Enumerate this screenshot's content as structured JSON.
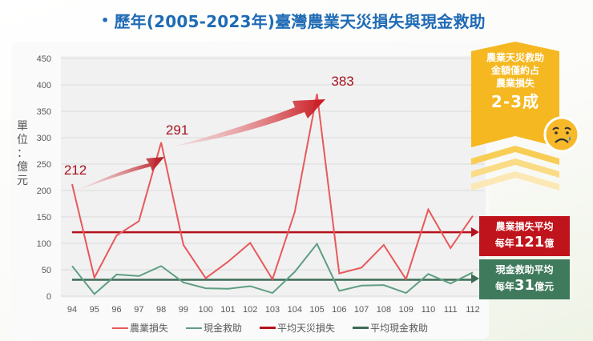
{
  "title": "歷年(2005-2023年)臺灣農業天災損失與現金救助",
  "title_bullet": "•",
  "y_axis_label": [
    "單",
    "位",
    "：",
    "億",
    "元"
  ],
  "chart_data": {
    "type": "line",
    "title": "歷年(2005-2023年)臺灣農業天災損失與現金救助",
    "xlabel": "",
    "ylabel": "單位：億元",
    "ylim": [
      0,
      450
    ],
    "yticks": [
      0,
      50,
      100,
      150,
      200,
      250,
      300,
      350,
      400,
      450
    ],
    "grid": true,
    "legend_position": "bottom",
    "categories": [
      "94",
      "95",
      "96",
      "97",
      "98",
      "99",
      "100",
      "101",
      "102",
      "103",
      "104",
      "105",
      "106",
      "107",
      "108",
      "109",
      "110",
      "111",
      "112"
    ],
    "series": [
      {
        "name": "農業損失",
        "color": "#e8585b",
        "values": [
          212,
          35,
          115,
          142,
          291,
          97,
          34,
          65,
          101,
          32,
          159,
          383,
          43,
          54,
          97,
          32,
          164,
          91,
          152
        ]
      },
      {
        "name": "現金救助",
        "color": "#5e9e82",
        "values": [
          57,
          4,
          41,
          38,
          57,
          26,
          15,
          14,
          19,
          6,
          46,
          99,
          10,
          20,
          21,
          6,
          42,
          24,
          45
        ]
      },
      {
        "name": "平均天災損失",
        "color": "#b5121b",
        "values": [
          121,
          121,
          121,
          121,
          121,
          121,
          121,
          121,
          121,
          121,
          121,
          121,
          121,
          121,
          121,
          121,
          121,
          121,
          121
        ]
      },
      {
        "name": "平均現金救助",
        "color": "#3d6b55",
        "values": [
          31,
          31,
          31,
          31,
          31,
          31,
          31,
          31,
          31,
          31,
          31,
          31,
          31,
          31,
          31,
          31,
          31,
          31,
          31
        ]
      }
    ],
    "annotations": [
      {
        "text": "212",
        "x": "94"
      },
      {
        "text": "291",
        "x": "98"
      },
      {
        "text": "383",
        "x": "105"
      }
    ]
  },
  "legend": [
    {
      "label": "農業損失",
      "color": "#e8585b"
    },
    {
      "label": "現金救助",
      "color": "#5e9e82"
    },
    {
      "label": "平均天災損失",
      "color": "#b5121b"
    },
    {
      "label": "平均現金救助",
      "color": "#3d6b55"
    }
  ],
  "callout": {
    "line1": "農業天災救助",
    "line2": "金額僅約占",
    "line3": "農業損失",
    "big": "2-3成",
    "color": "#f5b820",
    "emoji": "sad-face"
  },
  "avg_loss_box": {
    "line1": "農業損失平均",
    "prefix": "每年",
    "value": "121",
    "suffix": "億",
    "color": "#c0141c"
  },
  "avg_aid_box": {
    "line1": "現金救助平均",
    "prefix": "每年",
    "value": "31",
    "suffix": "億元",
    "color": "#3f7a5c"
  }
}
